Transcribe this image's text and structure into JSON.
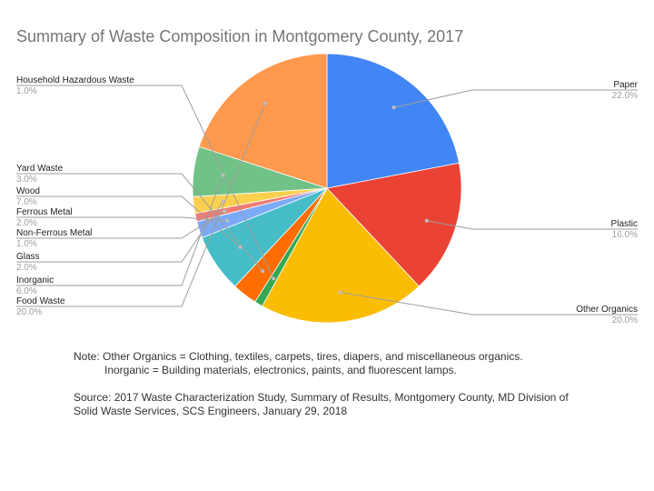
{
  "chart_data": {
    "type": "pie",
    "title": "Summary of Waste Composition in Montgomery County, 2017",
    "slices": [
      {
        "label": "Paper",
        "value": 22.0,
        "pct": "22.0%",
        "color": "#4285f4",
        "side": "right"
      },
      {
        "label": "Plastic",
        "value": 16.0,
        "pct": "16.0%",
        "color": "#ea4335",
        "side": "right"
      },
      {
        "label": "Other Organics",
        "value": 20.0,
        "pct": "20.0%",
        "color": "#fbbc04",
        "side": "right"
      },
      {
        "label": "Household Hazardous Waste",
        "value": 1.0,
        "pct": "1.0%",
        "color": "#34a853",
        "side": "left"
      },
      {
        "label": "Yard Waste",
        "value": 3.0,
        "pct": "3.0%",
        "color": "#ff6d01",
        "side": "left"
      },
      {
        "label": "Wood",
        "value": 7.0,
        "pct": "7.0%",
        "color": "#46bdc6",
        "side": "left"
      },
      {
        "label": "Ferrous Metal",
        "value": 2.0,
        "pct": "2.0%",
        "color": "#7baaf7",
        "side": "left"
      },
      {
        "label": "Non-Ferrous Metal",
        "value": 1.0,
        "pct": "1.0%",
        "color": "#f07b72",
        "side": "left"
      },
      {
        "label": "Glass",
        "value": 2.0,
        "pct": "2.0%",
        "color": "#fcd04f",
        "side": "left"
      },
      {
        "label": "Inorganic",
        "value": 6.0,
        "pct": "6.0%",
        "color": "#71c287",
        "side": "left"
      },
      {
        "label": "Food Waste",
        "value": 20.0,
        "pct": "20.0%",
        "color": "#ff994d",
        "side": "left"
      }
    ],
    "start_angle_deg": 0,
    "direction": "clockwise",
    "legend": "labels beside slices"
  },
  "notes": {
    "note_line1": "Note: Other Organics = Clothing, textiles, carpets, tires, diapers, and miscellaneous organics.",
    "note_line2": "Inorganic = Building materials, electronics, paints, and fluorescent lamps.",
    "source_line1": "Source: 2017 Waste Characterization Study, Summary of Results, Montgomery County, MD Division of",
    "source_line2": "Solid Waste Services, SCS Engineers, January 29, 2018"
  }
}
